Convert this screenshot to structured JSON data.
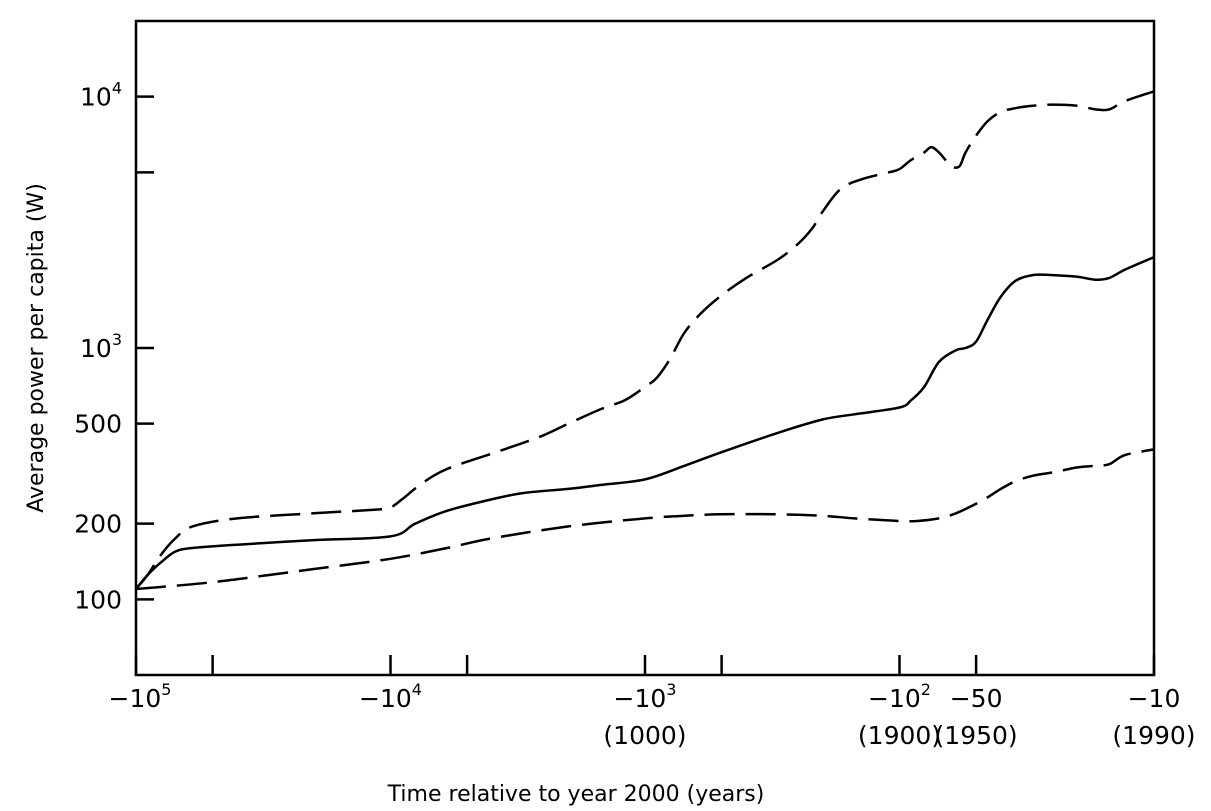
{
  "chart_data": {
    "type": "line",
    "title": "",
    "xlabel": "Time relative to year 2000 (years)",
    "ylabel": "Average power per capita (W)",
    "x_scale": "log of time before 2000",
    "y_scale": "log",
    "xlim": [
      -100000,
      -10
    ],
    "ylim": [
      50,
      20000
    ],
    "grid": false,
    "x_ticks": [
      {
        "value": -100000,
        "base": "−10",
        "exp": "5",
        "year": "",
        "labeled": true
      },
      {
        "value": -50000,
        "labeled": false
      },
      {
        "value": -10000,
        "base": "−10",
        "exp": "4",
        "year": "",
        "labeled": true
      },
      {
        "value": -5000,
        "labeled": false
      },
      {
        "value": -1000,
        "base": "−10",
        "exp": "3",
        "year": "(1000)",
        "labeled": true
      },
      {
        "value": -500,
        "labeled": false
      },
      {
        "value": -100,
        "base": "−10",
        "exp": "2",
        "year": "(1900)",
        "labeled": true
      },
      {
        "value": -50,
        "base": "−50",
        "exp": "",
        "year": "(1950)",
        "labeled": true
      },
      {
        "value": -10,
        "base": "−10",
        "exp": "",
        "year": "(1990)",
        "labeled": true
      }
    ],
    "y_ticks": [
      {
        "value": 100,
        "base": "100",
        "exp": ""
      },
      {
        "value": 200,
        "base": "200",
        "exp": ""
      },
      {
        "value": 500,
        "base": "500",
        "exp": ""
      },
      {
        "value": 1000,
        "base": "10",
        "exp": "3"
      },
      {
        "value": 5000,
        "base": "",
        "exp": ""
      },
      {
        "value": 10000,
        "base": "10",
        "exp": "4"
      }
    ],
    "series": [
      {
        "style": "dashed",
        "points": [
          [
            -100000,
            110
          ],
          [
            -90000,
            125
          ],
          [
            -80000,
            150
          ],
          [
            -70000,
            175
          ],
          [
            -60000,
            195
          ],
          [
            -40000,
            210
          ],
          [
            -20000,
            220
          ],
          [
            -11000,
            228
          ],
          [
            -10000,
            232
          ],
          [
            -9000,
            250
          ],
          [
            -7500,
            290
          ],
          [
            -6000,
            330
          ],
          [
            -4000,
            380
          ],
          [
            -3000,
            420
          ],
          [
            -2500,
            450
          ],
          [
            -2000,
            500
          ],
          [
            -1500,
            570
          ],
          [
            -1200,
            620
          ],
          [
            -1000,
            700
          ],
          [
            -900,
            760
          ],
          [
            -800,
            900
          ],
          [
            -700,
            1150
          ],
          [
            -600,
            1380
          ],
          [
            -500,
            1620
          ],
          [
            -400,
            1900
          ],
          [
            -300,
            2250
          ],
          [
            -250,
            2600
          ],
          [
            -220,
            3000
          ],
          [
            -200,
            3500
          ],
          [
            -170,
            4300
          ],
          [
            -140,
            4700
          ],
          [
            -110,
            5000
          ],
          [
            -100,
            5150
          ],
          [
            -90,
            5600
          ],
          [
            -80,
            6000
          ],
          [
            -75,
            6300
          ],
          [
            -70,
            6000
          ],
          [
            -65,
            5500
          ],
          [
            -62,
            5250
          ],
          [
            -58,
            5300
          ],
          [
            -55,
            6000
          ],
          [
            -50,
            7000
          ],
          [
            -45,
            8000
          ],
          [
            -40,
            8700
          ],
          [
            -35,
            9000
          ],
          [
            -30,
            9200
          ],
          [
            -25,
            9300
          ],
          [
            -20,
            9200
          ],
          [
            -17,
            8900
          ],
          [
            -15,
            8900
          ],
          [
            -13,
            9600
          ],
          [
            -10,
            10500
          ]
        ]
      },
      {
        "style": "solid",
        "points": [
          [
            -100000,
            110
          ],
          [
            -90000,
            125
          ],
          [
            -80000,
            140
          ],
          [
            -70000,
            155
          ],
          [
            -60000,
            160
          ],
          [
            -40000,
            165
          ],
          [
            -20000,
            172
          ],
          [
            -10000,
            178
          ],
          [
            -8000,
            200
          ],
          [
            -6000,
            225
          ],
          [
            -4000,
            250
          ],
          [
            -3000,
            265
          ],
          [
            -2000,
            275
          ],
          [
            -1500,
            285
          ],
          [
            -1000,
            300
          ],
          [
            -700,
            340
          ],
          [
            -500,
            385
          ],
          [
            -300,
            460
          ],
          [
            -200,
            520
          ],
          [
            -150,
            545
          ],
          [
            -100,
            580
          ],
          [
            -90,
            620
          ],
          [
            -80,
            700
          ],
          [
            -70,
            880
          ],
          [
            -60,
            980
          ],
          [
            -55,
            1000
          ],
          [
            -50,
            1060
          ],
          [
            -45,
            1300
          ],
          [
            -40,
            1600
          ],
          [
            -35,
            1850
          ],
          [
            -30,
            1950
          ],
          [
            -25,
            1950
          ],
          [
            -20,
            1920
          ],
          [
            -17,
            1870
          ],
          [
            -15,
            1900
          ],
          [
            -13,
            2050
          ],
          [
            -10,
            2300
          ]
        ]
      },
      {
        "style": "dashed",
        "points": [
          [
            -100000,
            110
          ],
          [
            -80000,
            112
          ],
          [
            -50000,
            117
          ],
          [
            -30000,
            125
          ],
          [
            -20000,
            132
          ],
          [
            -10000,
            145
          ],
          [
            -6000,
            160
          ],
          [
            -4000,
            175
          ],
          [
            -2000,
            195
          ],
          [
            -1000,
            210
          ],
          [
            -700,
            215
          ],
          [
            -500,
            218
          ],
          [
            -300,
            218
          ],
          [
            -200,
            215
          ],
          [
            -150,
            210
          ],
          [
            -100,
            205
          ],
          [
            -85,
            205
          ],
          [
            -70,
            210
          ],
          [
            -60,
            220
          ],
          [
            -50,
            240
          ],
          [
            -45,
            255
          ],
          [
            -40,
            275
          ],
          [
            -35,
            295
          ],
          [
            -30,
            310
          ],
          [
            -25,
            320
          ],
          [
            -20,
            335
          ],
          [
            -17,
            340
          ],
          [
            -15,
            345
          ],
          [
            -13,
            375
          ],
          [
            -10,
            395
          ]
        ]
      }
    ]
  }
}
